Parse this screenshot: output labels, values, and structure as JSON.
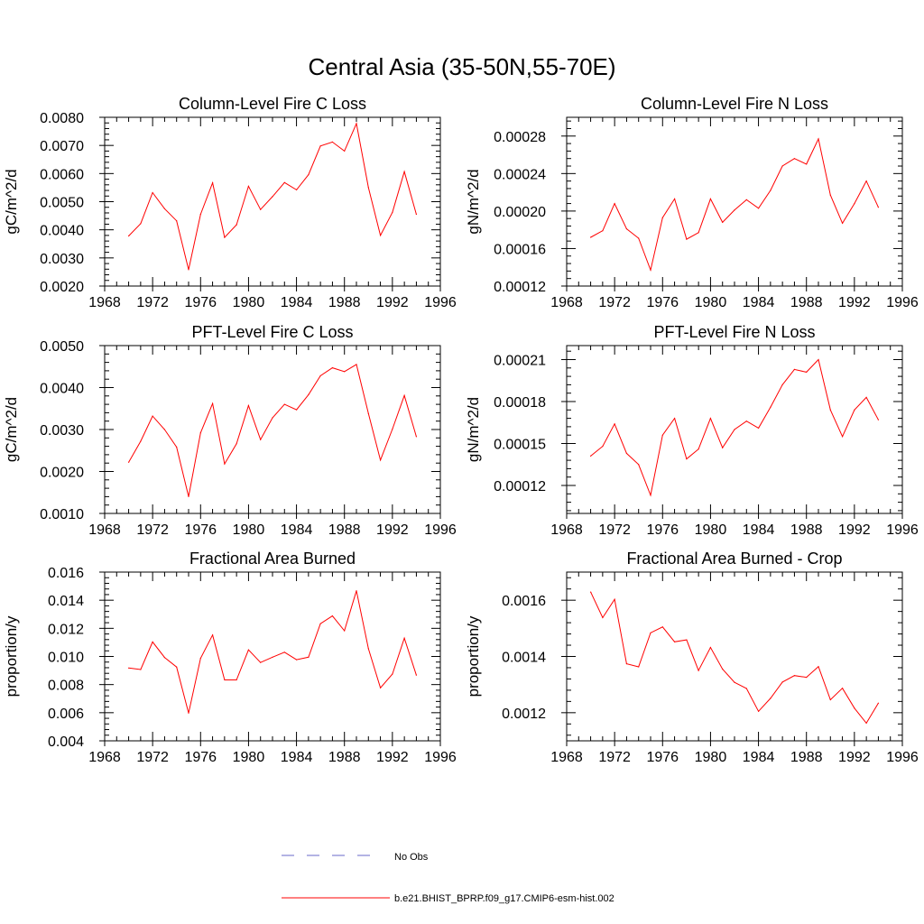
{
  "figure": {
    "title": "Central Asia (35-50N,55-70E)"
  },
  "legend": [
    {
      "label": "No Obs",
      "color": "#6a6ac8",
      "style": "dashed"
    },
    {
      "label": "b.e21.BHIST_BPRP.f09_g17.CMIP6-esm-hist.002",
      "color": "#ff0000",
      "style": "solid"
    }
  ],
  "chart_data": [
    {
      "type": "line",
      "title": "Column-Level Fire C Loss",
      "ylabel": "gC/m^2/d",
      "xlim": [
        1968,
        1996
      ],
      "xticks": [
        1968,
        1972,
        1976,
        1980,
        1984,
        1988,
        1992,
        1996
      ],
      "ylim": [
        0.002,
        0.008
      ],
      "yticks": [
        0.002,
        0.003,
        0.004,
        0.005,
        0.006,
        0.007,
        0.008
      ],
      "ytick_labels": [
        "0.0020",
        "0.0030",
        "0.0040",
        "0.0050",
        "0.0060",
        "0.0070",
        "0.0080"
      ],
      "series": [
        {
          "name": "b.e21.BHIST_BPRP.f09_g17.CMIP6-esm-hist.002",
          "x": [
            1970,
            1971,
            1972,
            1973,
            1974,
            1975,
            1976,
            1977,
            1978,
            1979,
            1980,
            1981,
            1982,
            1983,
            1984,
            1985,
            1986,
            1987,
            1988,
            1989,
            1990,
            1991,
            1992,
            1993,
            1994
          ],
          "values": [
            0.00378,
            0.00422,
            0.00532,
            0.00475,
            0.00432,
            0.00258,
            0.00455,
            0.00567,
            0.00373,
            0.00418,
            0.00555,
            0.00472,
            0.00518,
            0.00568,
            0.00542,
            0.00596,
            0.00698,
            0.00712,
            0.0068,
            0.00778,
            0.0055,
            0.0038,
            0.00462,
            0.00607,
            0.00455
          ]
        }
      ]
    },
    {
      "type": "line",
      "title": "Column-Level Fire N Loss",
      "ylabel": "gN/m^2/d",
      "xlim": [
        1968,
        1996
      ],
      "xticks": [
        1968,
        1972,
        1976,
        1980,
        1984,
        1988,
        1992,
        1996
      ],
      "ylim": [
        0.00012,
        0.0003
      ],
      "yticks": [
        0.00012,
        0.00016,
        0.0002,
        0.00024,
        0.00028
      ],
      "ytick_labels": [
        "0.00012",
        "0.00016",
        "0.00020",
        "0.00024",
        "0.00028"
      ],
      "series": [
        {
          "name": "b.e21.BHIST_BPRP.f09_g17.CMIP6-esm-hist.002",
          "x": [
            1970,
            1971,
            1972,
            1973,
            1974,
            1975,
            1976,
            1977,
            1978,
            1979,
            1980,
            1981,
            1982,
            1983,
            1984,
            1985,
            1986,
            1987,
            1988,
            1989,
            1990,
            1991,
            1992,
            1993,
            1994
          ],
          "values": [
            0.000172,
            0.000179,
            0.000208,
            0.000181,
            0.000171,
            0.000137,
            0.000193,
            0.000213,
            0.00017,
            0.000177,
            0.000213,
            0.000188,
            0.000201,
            0.000212,
            0.000203,
            0.000222,
            0.000248,
            0.000256,
            0.00025,
            0.000277,
            0.000217,
            0.000187,
            0.000208,
            0.000232,
            0.000204
          ]
        }
      ]
    },
    {
      "type": "line",
      "title": "PFT-Level Fire C Loss",
      "ylabel": "gC/m^2/d",
      "xlim": [
        1968,
        1996
      ],
      "xticks": [
        1968,
        1972,
        1976,
        1980,
        1984,
        1988,
        1992,
        1996
      ],
      "ylim": [
        0.001,
        0.005
      ],
      "yticks": [
        0.001,
        0.002,
        0.003,
        0.004,
        0.005
      ],
      "ytick_labels": [
        "0.0010",
        "0.0020",
        "0.0030",
        "0.0040",
        "0.0050"
      ],
      "series": [
        {
          "name": "b.e21.BHIST_BPRP.f09_g17.CMIP6-esm-hist.002",
          "x": [
            1970,
            1971,
            1972,
            1973,
            1974,
            1975,
            1976,
            1977,
            1978,
            1979,
            1980,
            1981,
            1982,
            1983,
            1984,
            1985,
            1986,
            1987,
            1988,
            1989,
            1990,
            1991,
            1992,
            1993,
            1994
          ],
          "values": [
            0.00222,
            0.00272,
            0.00332,
            0.003,
            0.00258,
            0.0014,
            0.00292,
            0.00362,
            0.00218,
            0.00266,
            0.00357,
            0.00276,
            0.00328,
            0.0036,
            0.00347,
            0.00383,
            0.00428,
            0.00447,
            0.00438,
            0.00455,
            0.00338,
            0.00227,
            0.00301,
            0.00381,
            0.00283
          ]
        }
      ]
    },
    {
      "type": "line",
      "title": "PFT-Level Fire N Loss",
      "ylabel": "gN/m^2/d",
      "xlim": [
        1968,
        1996
      ],
      "xticks": [
        1968,
        1972,
        1976,
        1980,
        1984,
        1988,
        1992,
        1996
      ],
      "ylim": [
        0.0001,
        0.00022
      ],
      "yticks": [
        0.00012,
        0.00015,
        0.00018,
        0.00021
      ],
      "ytick_labels": [
        "0.00012",
        "0.00015",
        "0.00018",
        "0.00021"
      ],
      "series": [
        {
          "name": "b.e21.BHIST_BPRP.f09_g17.CMIP6-esm-hist.002",
          "x": [
            1970,
            1971,
            1972,
            1973,
            1974,
            1975,
            1976,
            1977,
            1978,
            1979,
            1980,
            1981,
            1982,
            1983,
            1984,
            1985,
            1986,
            1987,
            1988,
            1989,
            1990,
            1991,
            1992,
            1993,
            1994
          ],
          "values": [
            0.000141,
            0.000148,
            0.000164,
            0.000143,
            0.000135,
            0.000113,
            0.000156,
            0.000168,
            0.000139,
            0.000146,
            0.000168,
            0.000147,
            0.00016,
            0.000166,
            0.000161,
            0.000176,
            0.000192,
            0.000203,
            0.000201,
            0.00021,
            0.000174,
            0.000155,
            0.000174,
            0.000183,
            0.000167
          ]
        }
      ]
    },
    {
      "type": "line",
      "title": "Fractional Area Burned",
      "ylabel": "proportion/y",
      "xlim": [
        1968,
        1996
      ],
      "xticks": [
        1968,
        1972,
        1976,
        1980,
        1984,
        1988,
        1992,
        1996
      ],
      "ylim": [
        0.004,
        0.016
      ],
      "yticks": [
        0.004,
        0.006,
        0.008,
        0.01,
        0.012,
        0.014,
        0.016
      ],
      "ytick_labels": [
        "0.004",
        "0.006",
        "0.008",
        "0.010",
        "0.012",
        "0.014",
        "0.016"
      ],
      "series": [
        {
          "name": "b.e21.BHIST_BPRP.f09_g17.CMIP6-esm-hist.002",
          "x": [
            1970,
            1971,
            1972,
            1973,
            1974,
            1975,
            1976,
            1977,
            1978,
            1979,
            1980,
            1981,
            1982,
            1983,
            1984,
            1985,
            1986,
            1987,
            1988,
            1989,
            1990,
            1991,
            1992,
            1993,
            1994
          ],
          "values": [
            0.00918,
            0.00907,
            0.01103,
            0.00993,
            0.00925,
            0.00597,
            0.00987,
            0.01153,
            0.00833,
            0.00833,
            0.01047,
            0.00957,
            0.00995,
            0.0103,
            0.00977,
            0.00995,
            0.01233,
            0.01288,
            0.01183,
            0.01467,
            0.01055,
            0.00777,
            0.00875,
            0.0113,
            0.00867
          ]
        }
      ]
    },
    {
      "type": "line",
      "title": "Fractional Area Burned - Crop",
      "ylabel": "proportion/y",
      "xlim": [
        1968,
        1996
      ],
      "xticks": [
        1968,
        1972,
        1976,
        1980,
        1984,
        1988,
        1992,
        1996
      ],
      "ylim": [
        0.0011,
        0.0017
      ],
      "yticks": [
        0.0012,
        0.0014,
        0.0016
      ],
      "ytick_labels": [
        "0.0012",
        "0.0014",
        "0.0016"
      ],
      "series": [
        {
          "name": "b.e21.BHIST_BPRP.f09_g17.CMIP6-esm-hist.002",
          "x": [
            1970,
            1971,
            1972,
            1973,
            1974,
            1975,
            1976,
            1977,
            1978,
            1979,
            1980,
            1981,
            1982,
            1983,
            1984,
            1985,
            1986,
            1987,
            1988,
            1989,
            1990,
            1991,
            1992,
            1993,
            1994
          ],
          "values": [
            0.001629,
            0.001538,
            0.001603,
            0.001374,
            0.001363,
            0.001484,
            0.001505,
            0.001452,
            0.001459,
            0.00135,
            0.001432,
            0.001355,
            0.001308,
            0.001286,
            0.001205,
            0.001251,
            0.001309,
            0.001332,
            0.001326,
            0.001364,
            0.001246,
            0.001287,
            0.001216,
            0.001163,
            0.001234
          ]
        }
      ]
    }
  ]
}
